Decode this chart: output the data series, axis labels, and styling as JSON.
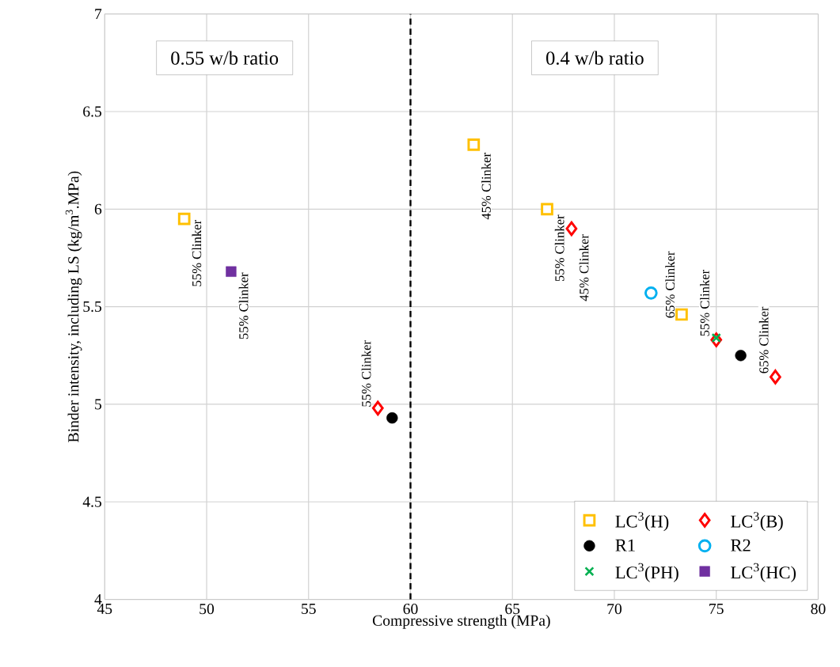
{
  "chart_data": {
    "type": "scatter",
    "xlabel": "Compressive strength (MPa)",
    "ylabel": "Binder intensity, including LS (kg/m$^{3}$.MPa)",
    "series": [
      {
        "name": "LC$^{3}$(H)",
        "color": "#ffc000",
        "marker": "square",
        "x": [
          48.9,
          63.1,
          66.7,
          73.3
        ],
        "values": [
          5.95,
          6.33,
          6.0,
          5.46
        ]
      },
      {
        "name": "LC$^{3}$(B)",
        "color": "#ff0000",
        "marker": "diamond",
        "x": [
          58.4,
          67.9,
          75.0,
          77.9
        ],
        "values": [
          4.98,
          5.9,
          5.33,
          5.14
        ]
      },
      {
        "name": "R1",
        "color": "#000000",
        "marker": "circle",
        "x": [
          59.1,
          76.2
        ],
        "values": [
          4.93,
          5.25
        ]
      },
      {
        "name": "R2",
        "color": "#00b0f0",
        "marker": "circle",
        "x": [
          71.8
        ],
        "values": [
          5.57
        ]
      },
      {
        "name": "LC$^{3}$(PH)",
        "color": "#00b050",
        "marker": "cross",
        "x": [
          75.0
        ],
        "values": [
          5.34
        ]
      },
      {
        "name": "LC$^{3}$(HC)",
        "color": "#7030a0",
        "marker": "square",
        "x": [
          51.2
        ],
        "values": [
          5.68
        ]
      }
    ],
    "xlim": [
      45,
      80
    ],
    "xticks": [
      45,
      50,
      55,
      60,
      65,
      70,
      75,
      80
    ],
    "ylim": [
      4,
      7
    ],
    "yticks": [
      4,
      4.5,
      5,
      5.5,
      6,
      6.5,
      7
    ],
    "grid": true,
    "legend": "bottom right",
    "ref_lines": [
      {
        "axis": "x",
        "value": 60,
        "color": "#000000",
        "line_style": "dashed"
      }
    ],
    "annotations": [
      "0.55 w/b ratio",
      "0.4 w/b ratio",
      {
        "text": "55% Clinker",
        "x": 48.9,
        "y": 5.95
      },
      {
        "text": "55% Clinker",
        "x": 51.2,
        "y": 5.68
      },
      {
        "text": "55% Clinker",
        "x": 58.4,
        "y": 4.98
      },
      {
        "text": "45% Clinker",
        "x": 63.1,
        "y": 6.33
      },
      {
        "text": "55% Clinker",
        "x": 66.7,
        "y": 6.0
      },
      {
        "text": "45% Clinker",
        "x": 67.9,
        "y": 5.9
      },
      {
        "text": "65% Clinker",
        "x": 73.3,
        "y": 5.46
      },
      {
        "text": "55% Clinker",
        "x": 75.0,
        "y": 5.33
      },
      {
        "text": "65% Clinker",
        "x": 77.9,
        "y": 5.14
      }
    ]
  }
}
